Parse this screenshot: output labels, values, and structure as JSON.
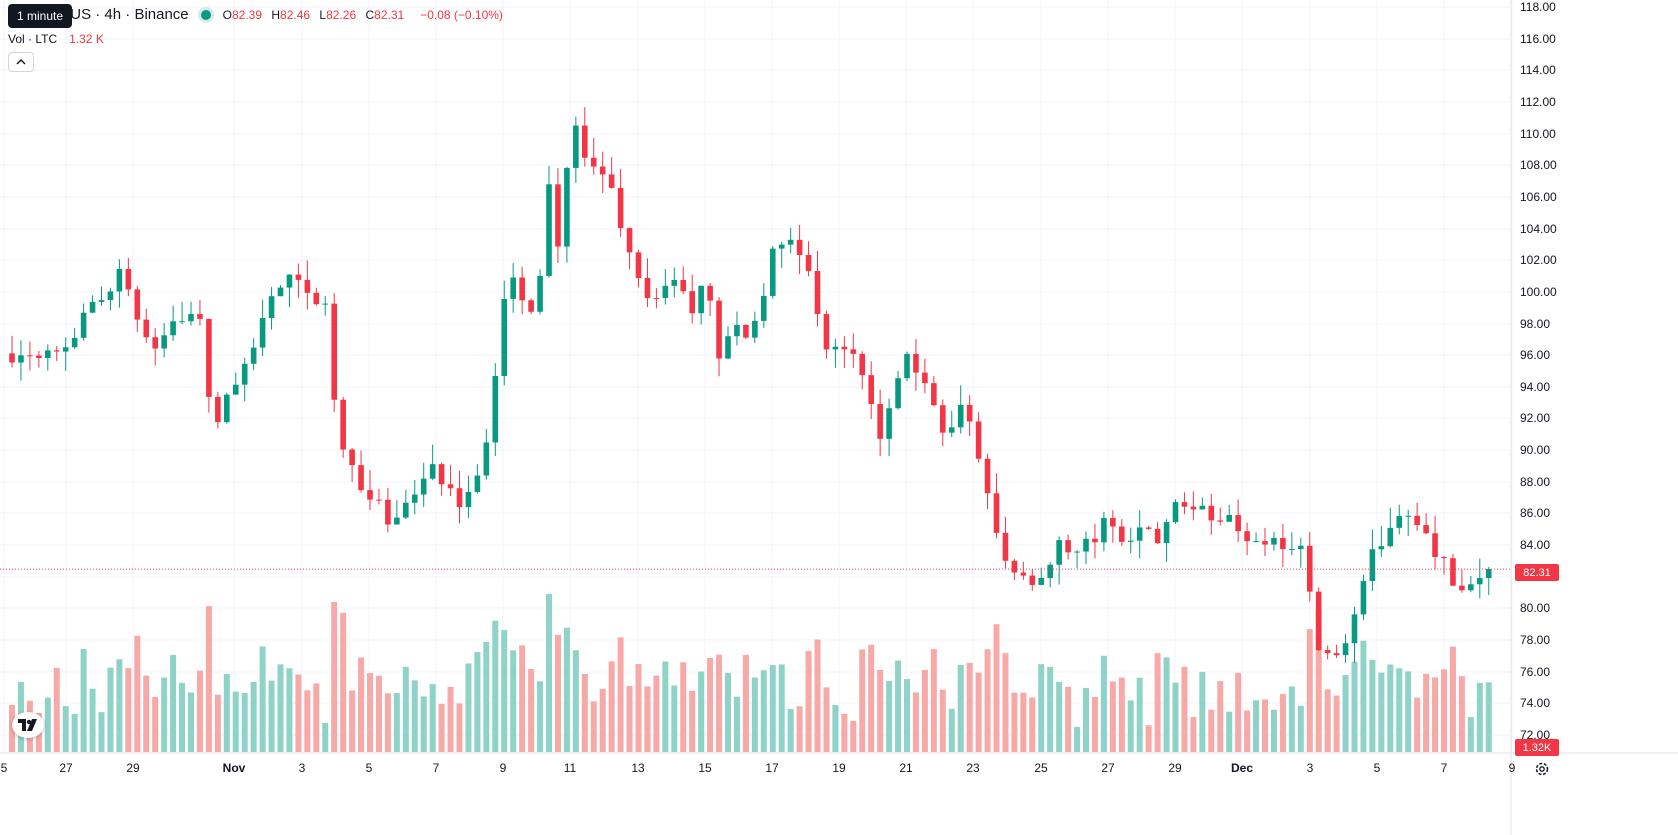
{
  "header": {
    "tooltip": "1 minute",
    "title": "n / TetherUS · 4h · Binance",
    "ohlc": [
      {
        "k": "O",
        "v": "82.39"
      },
      {
        "k": "H",
        "v": "82.46"
      },
      {
        "k": "L",
        "v": "82.26"
      },
      {
        "k": "C",
        "v": "82.31"
      }
    ],
    "change": "−0.08 (−0.10%)",
    "volume_label": "Vol · LTC",
    "volume_value": "1.32 K"
  },
  "icons": {
    "collapse": "chevron-up-icon",
    "logo": "tradingview-logo",
    "settings": "gear-icon"
  },
  "colors": {
    "up": "#089981",
    "down": "#f23645",
    "volume_up": "#8fd3c8",
    "volume_down": "#f7a9a7",
    "grid": "#f0f3fa"
  },
  "chart_data": {
    "type": "candlestick",
    "x_ticks": [
      "5",
      "27",
      "29",
      "Nov",
      "3",
      "5",
      "7",
      "9",
      "11",
      "13",
      "15",
      "17",
      "19",
      "21",
      "23",
      "25",
      "27",
      "29",
      "Dec",
      "3",
      "5",
      "7",
      "9"
    ],
    "y_ticks": [
      "118.00",
      "116.00",
      "114.00",
      "112.00",
      "110.00",
      "108.00",
      "106.00",
      "104.00",
      "102.00",
      "100.00",
      "98.00",
      "96.00",
      "94.00",
      "92.00",
      "90.00",
      "88.00",
      "86.00",
      "84.00",
      "82.00",
      "80.00",
      "78.00",
      "76.00",
      "74.00",
      "72.00"
    ],
    "ylim": [
      71.5,
      118.5
    ],
    "last_price": 82.31,
    "last_price_label": "82.31",
    "last_volume_label": "1.32K",
    "volume_max": 32,
    "path": [
      {
        "x": 0.0,
        "p": 96.2
      },
      {
        "x": 2.0,
        "p": 96.8
      },
      {
        "x": 3.3,
        "p": 99.8
      },
      {
        "x": 4.0,
        "p": 101.5
      },
      {
        "x": 4.5,
        "p": 99.0
      },
      {
        "x": 5.2,
        "p": 96.5
      },
      {
        "x": 5.5,
        "p": 97.5
      },
      {
        "x": 6.3,
        "p": 98.8
      },
      {
        "x": 7.0,
        "p": 98.0
      },
      {
        "x": 7.5,
        "p": 91.5
      },
      {
        "x": 8.0,
        "p": 93.0
      },
      {
        "x": 8.5,
        "p": 95.0
      },
      {
        "x": 9.0,
        "p": 96.5
      },
      {
        "x": 9.5,
        "p": 99.5
      },
      {
        "x": 10.5,
        "p": 101.0
      },
      {
        "x": 11.0,
        "p": 99.5
      },
      {
        "x": 11.6,
        "p": 100.0
      },
      {
        "x": 12.0,
        "p": 93.0
      },
      {
        "x": 12.4,
        "p": 90.0
      },
      {
        "x": 12.8,
        "p": 88.5
      },
      {
        "x": 13.2,
        "p": 86.5
      },
      {
        "x": 13.5,
        "p": 87.5
      },
      {
        "x": 13.9,
        "p": 84.5
      },
      {
        "x": 14.2,
        "p": 85.5
      },
      {
        "x": 14.5,
        "p": 86.5
      },
      {
        "x": 15.1,
        "p": 87.5
      },
      {
        "x": 15.6,
        "p": 89.5
      },
      {
        "x": 16.0,
        "p": 87.5
      },
      {
        "x": 16.6,
        "p": 86.5
      },
      {
        "x": 17.1,
        "p": 88.0
      },
      {
        "x": 17.5,
        "p": 89.0
      },
      {
        "x": 17.9,
        "p": 93.0
      },
      {
        "x": 18.2,
        "p": 98.0
      },
      {
        "x": 18.5,
        "p": 101.5
      },
      {
        "x": 18.8,
        "p": 100.0
      },
      {
        "x": 19.2,
        "p": 98.5
      },
      {
        "x": 19.6,
        "p": 100.5
      },
      {
        "x": 20.0,
        "p": 107.0
      },
      {
        "x": 20.3,
        "p": 103.0
      },
      {
        "x": 20.7,
        "p": 108.0
      },
      {
        "x": 21.0,
        "p": 110.3
      },
      {
        "x": 21.4,
        "p": 108.5
      },
      {
        "x": 21.8,
        "p": 107.5
      },
      {
        "x": 22.2,
        "p": 108.0
      },
      {
        "x": 22.6,
        "p": 105.0
      },
      {
        "x": 23.0,
        "p": 102.5
      },
      {
        "x": 23.4,
        "p": 101.0
      },
      {
        "x": 23.8,
        "p": 99.5
      },
      {
        "x": 24.3,
        "p": 100.0
      },
      {
        "x": 24.8,
        "p": 101.5
      },
      {
        "x": 25.2,
        "p": 98.0
      },
      {
        "x": 25.6,
        "p": 100.5
      },
      {
        "x": 26.0,
        "p": 99.5
      },
      {
        "x": 26.4,
        "p": 95.5
      },
      {
        "x": 26.8,
        "p": 98.5
      },
      {
        "x": 27.2,
        "p": 96.5
      },
      {
        "x": 27.6,
        "p": 98.0
      },
      {
        "x": 28.0,
        "p": 100.0
      },
      {
        "x": 28.4,
        "p": 104.0
      },
      {
        "x": 28.8,
        "p": 102.5
      },
      {
        "x": 29.2,
        "p": 103.5
      },
      {
        "x": 29.6,
        "p": 101.5
      },
      {
        "x": 30.0,
        "p": 98.5
      },
      {
        "x": 30.4,
        "p": 96.5
      },
      {
        "x": 30.8,
        "p": 96.0
      },
      {
        "x": 31.2,
        "p": 97.0
      },
      {
        "x": 31.6,
        "p": 95.0
      },
      {
        "x": 32.0,
        "p": 92.5
      },
      {
        "x": 32.4,
        "p": 91.0
      },
      {
        "x": 32.8,
        "p": 93.5
      },
      {
        "x": 33.2,
        "p": 96.0
      },
      {
        "x": 33.6,
        "p": 95.5
      },
      {
        "x": 34.0,
        "p": 94.5
      },
      {
        "x": 34.4,
        "p": 92.5
      },
      {
        "x": 34.8,
        "p": 90.5
      },
      {
        "x": 35.2,
        "p": 92.0
      },
      {
        "x": 35.6,
        "p": 93.0
      },
      {
        "x": 36.0,
        "p": 89.0
      },
      {
        "x": 36.4,
        "p": 86.5
      },
      {
        "x": 36.8,
        "p": 84.0
      },
      {
        "x": 37.2,
        "p": 81.5
      },
      {
        "x": 37.6,
        "p": 82.5
      },
      {
        "x": 38.0,
        "p": 81.2
      },
      {
        "x": 38.4,
        "p": 82.5
      },
      {
        "x": 38.8,
        "p": 83.5
      },
      {
        "x": 39.2,
        "p": 84.0
      },
      {
        "x": 39.6,
        "p": 83.5
      },
      {
        "x": 40.0,
        "p": 84.5
      },
      {
        "x": 40.4,
        "p": 83.5
      },
      {
        "x": 40.8,
        "p": 86.0
      },
      {
        "x": 41.2,
        "p": 84.5
      },
      {
        "x": 41.6,
        "p": 84.0
      },
      {
        "x": 42.0,
        "p": 85.5
      },
      {
        "x": 42.4,
        "p": 84.5
      },
      {
        "x": 42.8,
        "p": 84.0
      },
      {
        "x": 43.2,
        "p": 86.5
      },
      {
        "x": 43.6,
        "p": 87.0
      },
      {
        "x": 44.0,
        "p": 86.5
      },
      {
        "x": 44.4,
        "p": 87.0
      },
      {
        "x": 44.8,
        "p": 85.5
      },
      {
        "x": 45.2,
        "p": 86.0
      },
      {
        "x": 45.6,
        "p": 84.5
      },
      {
        "x": 46.0,
        "p": 84.5
      },
      {
        "x": 46.4,
        "p": 84.3
      },
      {
        "x": 47.0,
        "p": 84.5
      },
      {
        "x": 47.6,
        "p": 83.5
      },
      {
        "x": 48.0,
        "p": 84.0
      },
      {
        "x": 48.2,
        "p": 82.5
      },
      {
        "x": 48.5,
        "p": 78.0
      },
      {
        "x": 49.0,
        "p": 76.5
      },
      {
        "x": 49.4,
        "p": 77.5
      },
      {
        "x": 49.8,
        "p": 78.0
      },
      {
        "x": 50.2,
        "p": 80.5
      },
      {
        "x": 50.6,
        "p": 83.5
      },
      {
        "x": 51.0,
        "p": 84.0
      },
      {
        "x": 51.4,
        "p": 85.5
      },
      {
        "x": 51.8,
        "p": 86.0
      },
      {
        "x": 52.2,
        "p": 86.0
      },
      {
        "x": 52.6,
        "p": 84.5
      },
      {
        "x": 53.0,
        "p": 83.5
      },
      {
        "x": 53.4,
        "p": 82.5
      },
      {
        "x": 53.8,
        "p": 80.5
      },
      {
        "x": 54.2,
        "p": 80.5
      },
      {
        "x": 54.6,
        "p": 81.5
      },
      {
        "x": 55.0,
        "p": 82.2
      },
      {
        "x": 55.3,
        "p": 82.31
      }
    ]
  }
}
